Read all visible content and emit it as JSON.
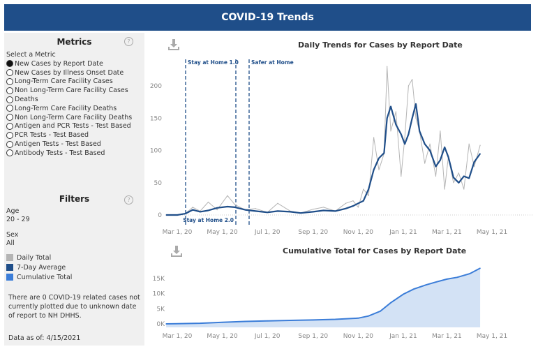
{
  "header": {
    "title": "COVID-19 Trends"
  },
  "metrics": {
    "title": "Metrics",
    "help_icon": "question-circle-icon",
    "select_label": "Select a Metric",
    "selected": 0,
    "options": [
      "New Cases by Report Date",
      "New Cases by Illness Onset Date",
      "Long-Term Care Facility Cases",
      "Non Long-Term Care Facility Cases",
      "Deaths",
      "Long-Term Care Facility Deaths",
      "Non Long-Term Care Facility Deaths",
      "Antigen and PCR Tests - Test Based",
      "PCR Tests - Test Based",
      "Antigen Tests - Test Based",
      "Antibody Tests - Test Based"
    ]
  },
  "filters": {
    "title": "Filters",
    "age_label": "Age",
    "age_value": "20 - 29",
    "sex_label": "Sex",
    "sex_value": "All",
    "legend": [
      {
        "label": "Daily Total",
        "color": "#b4b4b4"
      },
      {
        "label": "7-Day Average",
        "color": "#1f4e89"
      },
      {
        "label": "Cumulative Total",
        "color": "#3b7dd8"
      }
    ],
    "note": "There are 0 COVID-19 related cases not currently plotted due to unknown date of report to NH DHHS.",
    "data_as_of": "Data as of: 4/15/2021"
  },
  "chart_data": [
    {
      "type": "line",
      "title": "Daily Trends for Cases by Report Date",
      "x_ticks": [
        "Mar 1, 20",
        "May 1, 20",
        "Jul 1, 20",
        "Sep 1, 20",
        "Nov 1, 20",
        "Jan 1, 21",
        "Mar 1, 21",
        "May 1, 21"
      ],
      "y_ticks": [
        0,
        50,
        100,
        150,
        200
      ],
      "ylim": [
        0,
        230
      ],
      "annotations": [
        "Stay at Home 1.0",
        "Stay at Home 2.0",
        "Safer at Home"
      ],
      "x": [
        "2020-02-15",
        "2020-03-01",
        "2020-03-12",
        "2020-03-22",
        "2020-04-01",
        "2020-04-12",
        "2020-04-24",
        "2020-05-08",
        "2020-05-18",
        "2020-06-01",
        "2020-06-15",
        "2020-07-01",
        "2020-07-15",
        "2020-08-01",
        "2020-08-15",
        "2020-09-01",
        "2020-09-15",
        "2020-10-01",
        "2020-10-15",
        "2020-10-25",
        "2020-11-01",
        "2020-11-08",
        "2020-11-15",
        "2020-11-22",
        "2020-11-29",
        "2020-12-06",
        "2020-12-10",
        "2020-12-15",
        "2020-12-22",
        "2020-12-29",
        "2021-01-03",
        "2021-01-08",
        "2021-01-13",
        "2021-01-18",
        "2021-01-23",
        "2021-01-30",
        "2021-02-06",
        "2021-02-14",
        "2021-02-20",
        "2021-02-26",
        "2021-03-03",
        "2021-03-10",
        "2021-03-17",
        "2021-03-24",
        "2021-03-31",
        "2021-04-07",
        "2021-04-15"
      ],
      "series": [
        {
          "name": "Daily Total",
          "color": "#b4b4b4",
          "values": [
            0,
            0,
            2,
            12,
            6,
            20,
            8,
            30,
            16,
            8,
            10,
            4,
            18,
            6,
            3,
            9,
            12,
            6,
            18,
            22,
            12,
            40,
            30,
            120,
            70,
            95,
            230,
            130,
            160,
            60,
            120,
            200,
            210,
            150,
            130,
            80,
            110,
            60,
            130,
            40,
            90,
            50,
            65,
            40,
            110,
            75,
            108
          ]
        },
        {
          "name": "7-Day Average",
          "color": "#1f4e89",
          "values": [
            0,
            0,
            2,
            8,
            5,
            7,
            11,
            13,
            12,
            8,
            6,
            4,
            6,
            5,
            3,
            5,
            7,
            6,
            10,
            14,
            18,
            22,
            40,
            70,
            88,
            96,
            150,
            168,
            140,
            125,
            110,
            125,
            150,
            172,
            130,
            110,
            100,
            75,
            85,
            105,
            90,
            58,
            50,
            60,
            57,
            82,
            95
          ]
        }
      ]
    },
    {
      "type": "area",
      "title": "Cumulative Total for Cases by Report Date",
      "x_ticks": [
        "Mar 1, 20",
        "May 1, 20",
        "Jul 1, 20",
        "Sep 1, 20",
        "Nov 1, 20",
        "Jan 1, 21",
        "Mar 1, 21",
        "May 1, 21"
      ],
      "y_ticks": [
        "0K",
        "5K",
        "10K",
        "15K"
      ],
      "ylim": [
        0,
        18500
      ],
      "series": [
        {
          "name": "Cumulative Total",
          "color": "#3b7dd8",
          "x": [
            "2020-02-15",
            "2020-04-01",
            "2020-05-01",
            "2020-06-01",
            "2020-07-01",
            "2020-08-01",
            "2020-09-01",
            "2020-10-01",
            "2020-11-01",
            "2020-11-15",
            "2020-12-01",
            "2020-12-15",
            "2021-01-01",
            "2021-01-15",
            "2021-02-01",
            "2021-02-15",
            "2021-03-01",
            "2021-03-15",
            "2021-04-01",
            "2021-04-15"
          ],
          "values": [
            0,
            200,
            500,
            800,
            1000,
            1150,
            1300,
            1500,
            1900,
            2600,
            4200,
            7000,
            9800,
            11500,
            12900,
            13900,
            14800,
            15400,
            16600,
            18400
          ]
        }
      ]
    }
  ]
}
